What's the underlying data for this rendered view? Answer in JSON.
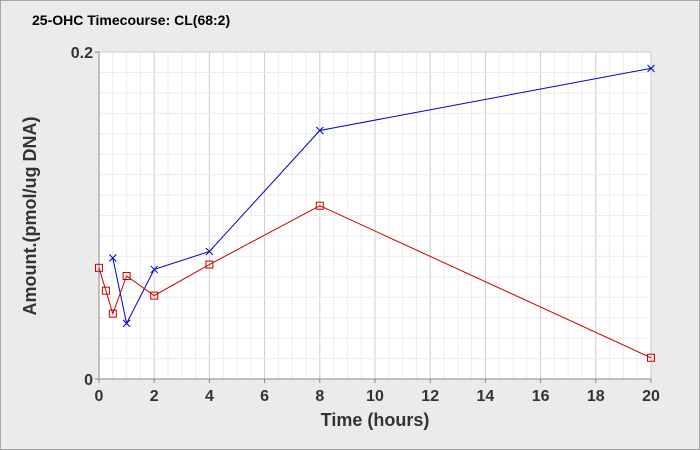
{
  "chart_data": {
    "type": "line",
    "title": "25-OHC Timecourse: CL(68:2)",
    "xlabel": "Time (hours)",
    "ylabel": "Amount.(pmol/ug DNA)",
    "xlim": [
      0,
      20
    ],
    "ylim": [
      0,
      0.2
    ],
    "x_ticks": [
      "0",
      "2",
      "4",
      "6",
      "8",
      "10",
      "12",
      "14",
      "16",
      "18",
      "20"
    ],
    "y_ticks": [
      "0",
      "0.2"
    ],
    "grid": true,
    "colors": {
      "blue_series": "#0000cc",
      "red_series": "#cc0000",
      "background": "#ebebeb",
      "plot_area": "#ffffff"
    },
    "series": [
      {
        "marker": "x",
        "color": "#0000cc",
        "x": [
          0.5,
          1,
          2,
          4,
          8,
          20
        ],
        "y": [
          0.074,
          0.034,
          0.067,
          0.078,
          0.152,
          0.19
        ]
      },
      {
        "marker": "square",
        "color": "#cc0000",
        "x": [
          0,
          0.25,
          0.5,
          1,
          2,
          4,
          8,
          20
        ],
        "y": [
          0.068,
          0.054,
          0.04,
          0.063,
          0.051,
          0.07,
          0.106,
          0.013
        ]
      }
    ]
  }
}
